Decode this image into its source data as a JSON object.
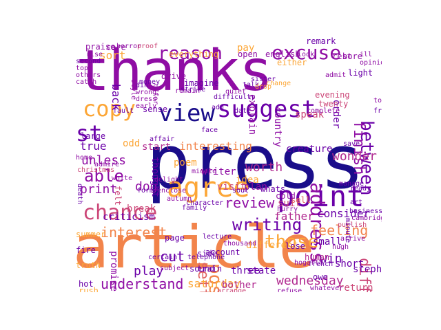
{
  "palette": {
    "deep_indigo": "#1a0d8a",
    "purple": "#6a00a8",
    "violet": "#8f0da4",
    "magenta": "#b12a90",
    "rose": "#cc4778",
    "salmon": "#e16462",
    "orange": "#f2844b",
    "amber": "#fca636",
    "yellow": "#f0c93a"
  },
  "words": [
    {
      "text": "thanks",
      "color": "#8f0da4"
    },
    {
      "text": "press",
      "color": "#1a0d8a"
    },
    {
      "text": "article",
      "color": "#f2844b"
    },
    {
      "text": "suggest",
      "color": "#6a00a8"
    },
    {
      "text": "view",
      "color": "#1a0d8a"
    },
    {
      "text": "agree",
      "color": "#fca636"
    },
    {
      "text": "point",
      "color": "#6a00a8"
    },
    {
      "text": "chance",
      "color": "#cc4778"
    },
    {
      "text": "copy",
      "color": "#fca636"
    },
    {
      "text": "reason",
      "color": "#8f0da4"
    },
    {
      "text": "excuse",
      "color": "#8f0da4"
    },
    {
      "text": "between",
      "color": "#6a00a8"
    },
    {
      "text": "finish",
      "color": "#8f0da4"
    },
    {
      "text": "st",
      "color": "#6a00a8"
    },
    {
      "text": "able",
      "color": "#8f0da4"
    },
    {
      "text": "address",
      "color": "#8f0da4"
    },
    {
      "text": "difficult",
      "color": "#cc4778"
    },
    {
      "text": "writing",
      "color": "#6a00a8"
    },
    {
      "text": "review",
      "color": "#8f0da4"
    },
    {
      "text": "interest",
      "color": "#f2844b"
    },
    {
      "text": "feeling",
      "color": "#f2844b"
    },
    {
      "text": "those",
      "color": "#fca636"
    },
    {
      "text": "post",
      "color": "#f2844b"
    },
    {
      "text": "settle",
      "color": "#e16462"
    },
    {
      "text": "understand",
      "color": "#8f0da4"
    },
    {
      "text": "wednesday",
      "color": "#b12a90"
    },
    {
      "text": "saturday",
      "color": "#fca636"
    },
    {
      "text": "print",
      "color": "#8f0da4"
    },
    {
      "text": "unless",
      "color": "#8f0da4"
    },
    {
      "text": "true",
      "color": "#6a00a8"
    },
    {
      "text": "cut",
      "color": "#6a00a8"
    },
    {
      "text": "play",
      "color": "#6a00a8"
    },
    {
      "text": "dog",
      "color": "#8f0da4"
    },
    {
      "text": "interesting",
      "color": "#f2844b"
    },
    {
      "text": "worth",
      "color": "#b12a90"
    },
    {
      "text": "father",
      "color": "#b12a90"
    },
    {
      "text": "consider",
      "color": "#6a00a8"
    },
    {
      "text": "wonder",
      "color": "#b12a90"
    },
    {
      "text": "win",
      "color": "#6a00a8"
    },
    {
      "text": "small",
      "color": "#6a00a8"
    },
    {
      "text": "return",
      "color": "#cc4778"
    },
    {
      "text": "bother",
      "color": "#b12a90"
    },
    {
      "text": "pay",
      "color": "#fca636"
    },
    {
      "text": "sort",
      "color": "#fca636"
    },
    {
      "text": "back",
      "color": "#6a00a8"
    },
    {
      "text": "start",
      "color": "#b12a90"
    },
    {
      "text": "poem",
      "color": "#fca636"
    },
    {
      "text": "idea",
      "color": "#fca636"
    },
    {
      "text": "thought",
      "color": "#6a00a8"
    },
    {
      "text": "explain",
      "color": "#8f0da4"
    },
    {
      "text": "order",
      "color": "#6a00a8"
    },
    {
      "text": "break",
      "color": "#cc4778"
    },
    {
      "text": "criticism",
      "color": "#6a00a8"
    },
    {
      "text": "promise",
      "color": "#8f0da4"
    },
    {
      "text": "short",
      "color": "#6a00a8"
    },
    {
      "text": "human",
      "color": "#b12a90"
    },
    {
      "text": "three",
      "color": "#6a00a8"
    },
    {
      "text": "state",
      "color": "#6a00a8"
    },
    {
      "text": "stephen",
      "color": "#6a00a8"
    },
    {
      "text": "large",
      "color": "#6a00a8"
    },
    {
      "text": "odd",
      "color": "#fca636"
    },
    {
      "text": "creature",
      "color": "#6a00a8"
    },
    {
      "text": "country",
      "color": "#8f0da4"
    },
    {
      "text": "speak",
      "color": "#cc4778"
    },
    {
      "text": "light",
      "color": "#6a00a8"
    },
    {
      "text": "praise",
      "color": "#8f0da4"
    },
    {
      "text": "care",
      "color": "#8f0da4"
    },
    {
      "text": "everything",
      "color": "#fca636"
    },
    {
      "text": "english",
      "color": "#8f0da4"
    },
    {
      "text": "open",
      "color": "#8f0da4"
    },
    {
      "text": "imagine",
      "color": "#6a00a8"
    },
    {
      "text": "felt",
      "color": "#cc4778"
    },
    {
      "text": "summer",
      "color": "#fca636"
    },
    {
      "text": "fire",
      "color": "#6a00a8"
    },
    {
      "text": "truth",
      "color": "#fca636"
    },
    {
      "text": "hot",
      "color": "#6a00a8"
    },
    {
      "text": "rush",
      "color": "#fca636"
    },
    {
      "text": "sound",
      "color": "#6a00a8"
    },
    {
      "text": "side",
      "color": "#6a00a8"
    },
    {
      "text": "train",
      "color": "#6a00a8"
    },
    {
      "text": "page",
      "color": "#6a00a8"
    },
    {
      "text": "writer",
      "color": "#8f0da4"
    },
    {
      "text": "visit",
      "color": "#cc4778"
    },
    {
      "text": "plan",
      "color": "#8f0da4"
    },
    {
      "text": "account",
      "color": "#6a00a8"
    },
    {
      "text": "suit",
      "color": "#cc4778"
    },
    {
      "text": "different",
      "color": "#fca636"
    },
    {
      "text": "lose",
      "color": "#6a00a8"
    },
    {
      "text": "owe",
      "color": "#6a00a8"
    },
    {
      "text": "sell",
      "color": "#e16462"
    },
    {
      "text": "whats",
      "color": "#6a00a8"
    },
    {
      "text": "cold",
      "color": "#8f0da4"
    },
    {
      "text": "sense",
      "color": "#6a00a8"
    },
    {
      "text": "evening",
      "color": "#cc4778"
    },
    {
      "text": "twenty",
      "color": "#cc4778"
    },
    {
      "text": "either",
      "color": "#fca636"
    },
    {
      "text": "rest",
      "color": "#8f0da4"
    },
    {
      "text": "bore",
      "color": "#8f0da4"
    },
    {
      "text": "remark",
      "color": "#6a00a8"
    },
    {
      "text": "horror",
      "color": "#8f0da4"
    },
    {
      "text": "proof",
      "color": "#cc4778"
    },
    {
      "text": "rise",
      "color": "#8f0da4"
    },
    {
      "text": "second",
      "color": "#6a00a8"
    },
    {
      "text": "top",
      "color": "#8f0da4"
    },
    {
      "text": "others",
      "color": "#8f0da4"
    },
    {
      "text": "catch",
      "color": "#8f0da4"
    },
    {
      "text": "drive",
      "color": "#8f0da4"
    },
    {
      "text": "din",
      "color": "#6a00a8"
    },
    {
      "text": "wrong",
      "color": "#8f0da4"
    },
    {
      "text": "dress",
      "color": "#8f0da4"
    },
    {
      "text": "early",
      "color": "#8f0da4"
    },
    {
      "text": "remain",
      "color": "#8f0da4"
    },
    {
      "text": "money",
      "color": "#6a00a8"
    },
    {
      "text": "style",
      "color": "#8f0da4"
    },
    {
      "text": "offer",
      "color": "#8f0da4"
    },
    {
      "text": "strike",
      "color": "#6a00a8"
    },
    {
      "text": "difficulty",
      "color": "#6a00a8"
    },
    {
      "text": "add",
      "color": "#6a00a8"
    },
    {
      "text": "complete",
      "color": "#8f0da4"
    },
    {
      "text": "admit",
      "color": "#8f0da4"
    },
    {
      "text": "touch",
      "color": "#8f0da4"
    },
    {
      "text": "free",
      "color": "#6a00a8"
    },
    {
      "text": "death",
      "color": "#6a00a8"
    },
    {
      "text": "admire",
      "color": "#8f0da4"
    },
    {
      "text": "white",
      "color": "#8f0da4"
    },
    {
      "text": "home",
      "color": "#8f0da4"
    },
    {
      "text": "christmas",
      "color": "#cc4778"
    },
    {
      "text": "delight",
      "color": "#8f0da4"
    },
    {
      "text": "enclose",
      "color": "#8f0da4"
    },
    {
      "text": "autumn",
      "color": "#8f0da4"
    },
    {
      "text": "family",
      "color": "#6a00a8"
    },
    {
      "text": "save",
      "color": "#6a00a8"
    },
    {
      "text": "manage",
      "color": "#6a00a8"
    },
    {
      "text": "art",
      "color": "#6a00a8"
    },
    {
      "text": "ready",
      "color": "#6a00a8"
    },
    {
      "text": "business",
      "color": "#6a00a8"
    },
    {
      "text": "cambridge",
      "color": "#8f0da4"
    },
    {
      "text": "publish",
      "color": "#cc4778"
    },
    {
      "text": "arrive",
      "color": "#8f0da4"
    },
    {
      "text": "minute",
      "color": "#6a00a8"
    },
    {
      "text": "hugh",
      "color": "#8f0da4"
    },
    {
      "text": "french",
      "color": "#6a00a8"
    },
    {
      "text": "hogarth",
      "color": "#8f0da4"
    },
    {
      "text": "whatever",
      "color": "#8f0da4"
    },
    {
      "text": "refuse",
      "color": "#8f0da4"
    },
    {
      "text": "arrange",
      "color": "#cc4778"
    },
    {
      "text": "certain",
      "color": "#6a00a8"
    },
    {
      "text": "subject",
      "color": "#8f0da4"
    },
    {
      "text": "telephone",
      "color": "#6a00a8"
    },
    {
      "text": "thousand",
      "color": "#8f0da4"
    },
    {
      "text": "lecture",
      "color": "#6a00a8"
    },
    {
      "text": "fault",
      "color": "#6a00a8"
    },
    {
      "text": "affair",
      "color": "#6a00a8"
    },
    {
      "text": "face",
      "color": "#6a00a8"
    },
    {
      "text": "date",
      "color": "#6a00a8"
    },
    {
      "text": "middle",
      "color": "#8f0da4"
    },
    {
      "text": "character",
      "color": "#6a00a8"
    },
    {
      "text": "form",
      "color": "#6a00a8"
    },
    {
      "text": "soul",
      "color": "#6a00a8"
    },
    {
      "text": "talk",
      "color": "#6a00a8"
    },
    {
      "text": "sister",
      "color": "#6a00a8"
    },
    {
      "text": "drop",
      "color": "#fca636"
    },
    {
      "text": "change",
      "color": "#fca636"
    },
    {
      "text": "look",
      "color": "#8f0da4"
    },
    {
      "text": "ill",
      "color": "#8f0da4"
    },
    {
      "text": "opinion",
      "color": "#8f0da4"
    },
    {
      "text": "quiet",
      "color": "#8f0da4"
    },
    {
      "text": "hurry",
      "color": "#8f0da4"
    },
    {
      "text": "lot",
      "color": "#8f0da4"
    },
    {
      "text": "water",
      "color": "#8f0da4"
    },
    {
      "text": "lake",
      "color": "#8f0da4"
    },
    {
      "text": "general",
      "color": "#8f0da4"
    },
    {
      "text": "hour",
      "color": "#8f0da4"
    }
  ]
}
